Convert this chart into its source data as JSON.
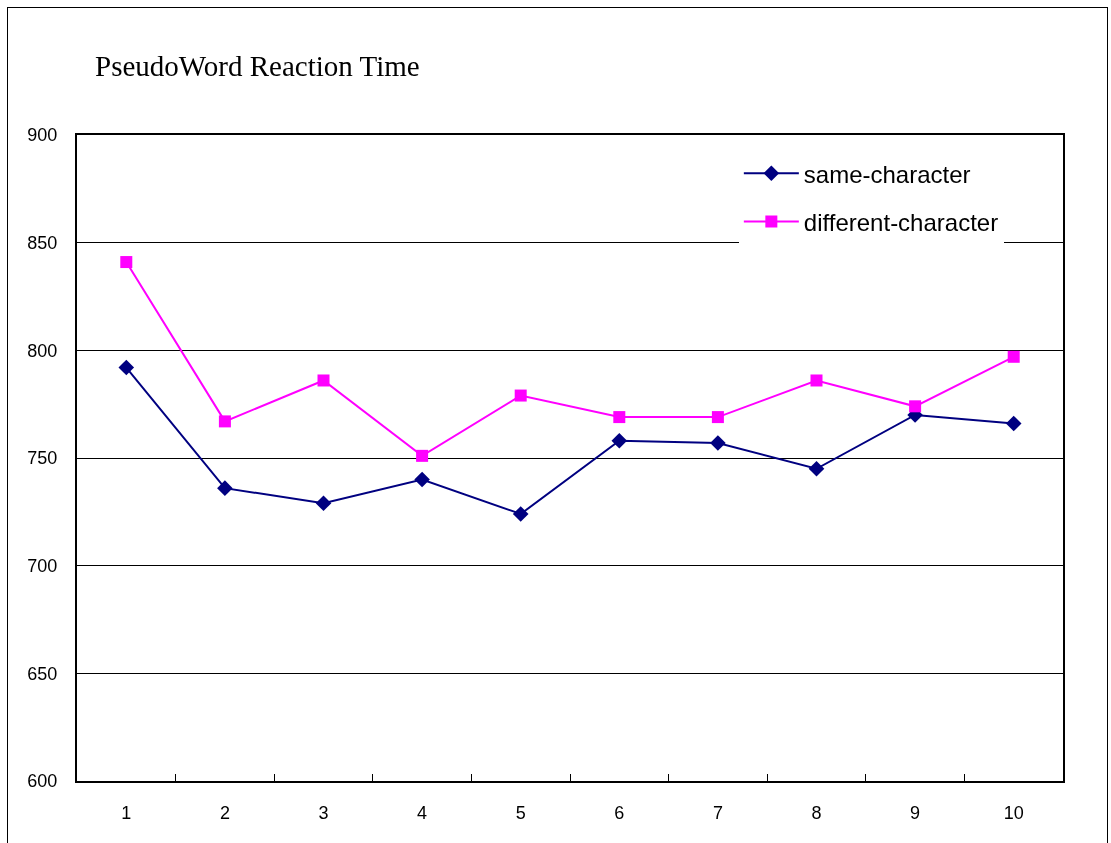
{
  "chart_data": {
    "type": "line",
    "title": "PseudoWord Reaction Time",
    "categories": [
      "1",
      "2",
      "3",
      "4",
      "5",
      "6",
      "7",
      "8",
      "9",
      "10"
    ],
    "series": [
      {
        "name": "same-character",
        "color": "#000080",
        "marker": "diamond",
        "values": [
          792,
          736,
          729,
          740,
          724,
          758,
          757,
          745,
          770,
          766
        ]
      },
      {
        "name": "different-character",
        "color": "#ff00ff",
        "marker": "square",
        "values": [
          841,
          767,
          786,
          751,
          779,
          769,
          769,
          786,
          774,
          797
        ]
      }
    ],
    "ylim": [
      600,
      900
    ],
    "yticks": [
      600,
      650,
      700,
      750,
      800,
      850,
      900
    ],
    "grid": "y",
    "legend": "top right",
    "line_style": "solid"
  }
}
